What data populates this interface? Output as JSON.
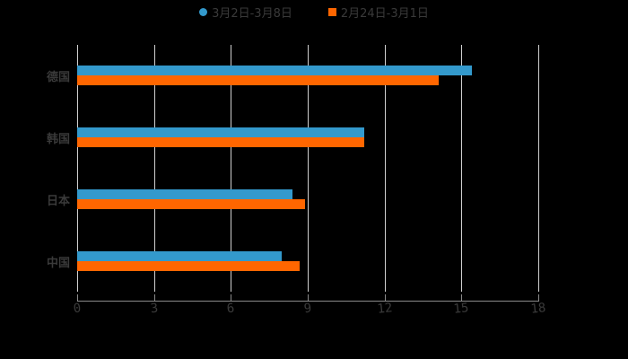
{
  "colors": {
    "series1": "#3399cc",
    "series2": "#ff6600"
  },
  "legend": [
    {
      "label": "3月2日-3月8日",
      "shape": "circle"
    },
    {
      "label": "2月24日-3月1日",
      "shape": "square"
    }
  ],
  "chart_data": {
    "type": "bar",
    "orientation": "horizontal",
    "title": "",
    "categories": [
      "德国",
      "韩国",
      "日本",
      "中国"
    ],
    "series": [
      {
        "name": "3月2日-3月8日",
        "values": [
          15.4,
          11.2,
          8.4,
          8.0
        ]
      },
      {
        "name": "2月24日-3月1日",
        "values": [
          14.1,
          11.2,
          8.9,
          8.7
        ]
      }
    ],
    "xlabel": "",
    "ylabel": "",
    "xlim": [
      0,
      18
    ],
    "xticks": [
      "0",
      "3",
      "6",
      "9",
      "12",
      "15",
      "18"
    ],
    "grid": true,
    "legend_position": "top"
  }
}
